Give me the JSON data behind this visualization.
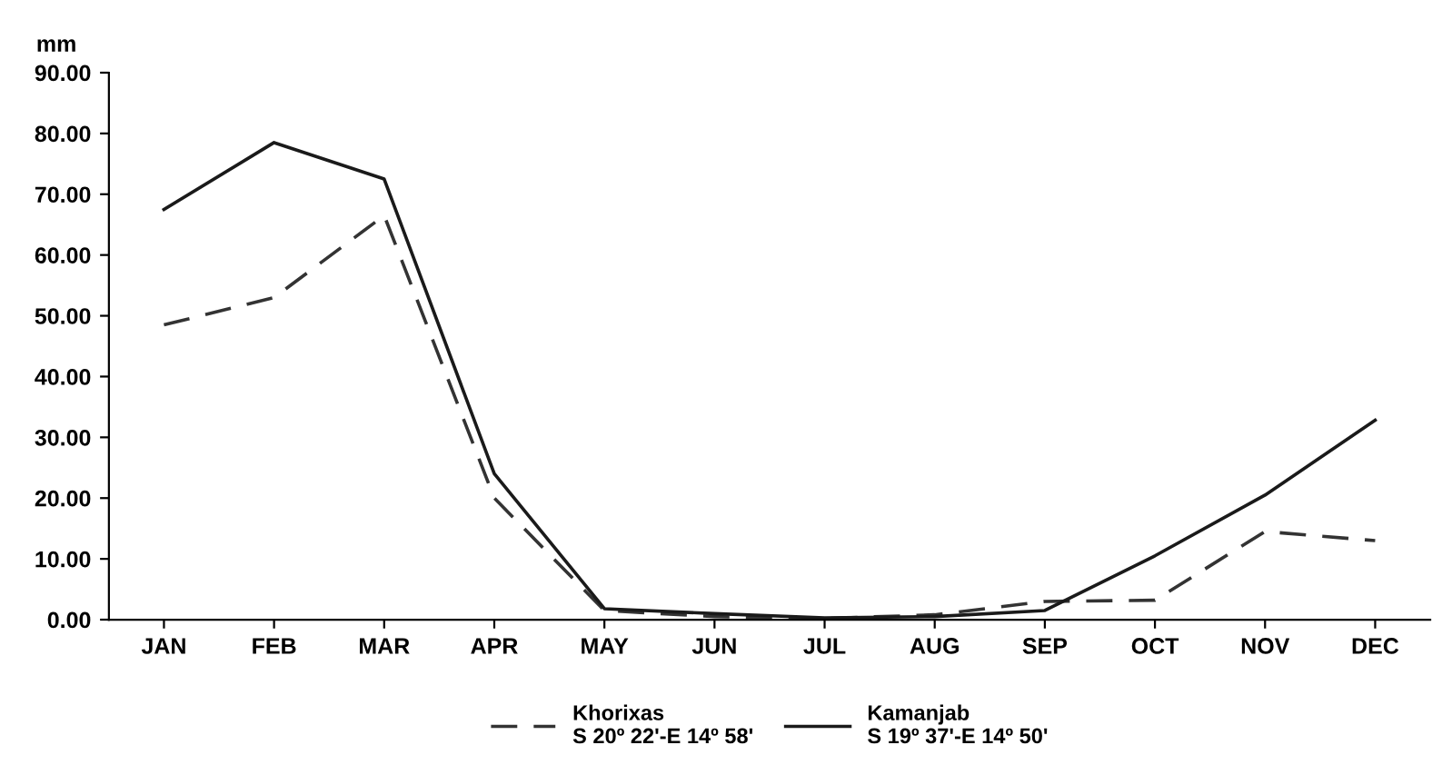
{
  "chart_data": {
    "type": "line",
    "ylabel": "mm",
    "categories": [
      "JAN",
      "FEB",
      "MAR",
      "APR",
      "MAY",
      "JUN",
      "JUL",
      "AUG",
      "SEP",
      "OCT",
      "NOV",
      "DEC"
    ],
    "series": [
      {
        "name": "Khorixas\nS 20º 22'-E 14º 58'",
        "color": "#333333",
        "line_style": "dashed",
        "values": [
          48.5,
          53.0,
          66.5,
          20.0,
          1.5,
          0.5,
          0.2,
          0.8,
          3.0,
          3.2,
          14.5,
          13.0
        ]
      },
      {
        "name": "Kamanjab\nS 19º 37'-E 14º 50'",
        "color": "#1a1a1a",
        "line_style": "solid",
        "values": [
          67.5,
          78.5,
          72.5,
          24.0,
          1.8,
          1.0,
          0.3,
          0.5,
          1.5,
          10.5,
          20.5,
          32.8
        ]
      }
    ],
    "ylim": [
      0,
      90
    ],
    "yticks": [
      {
        "value": 0,
        "label": "0.00"
      },
      {
        "value": 10,
        "label": "10.00"
      },
      {
        "value": 20,
        "label": "20.00"
      },
      {
        "value": 30,
        "label": "30.00"
      },
      {
        "value": 40,
        "label": "40.00"
      },
      {
        "value": 50,
        "label": "50.00"
      },
      {
        "value": 60,
        "label": "60.00"
      },
      {
        "value": 70,
        "label": "70.00"
      },
      {
        "value": 80,
        "label": "80.00"
      },
      {
        "value": 90,
        "label": "90.00"
      }
    ],
    "grid": false,
    "legend": "bottom",
    "marker": "none"
  }
}
